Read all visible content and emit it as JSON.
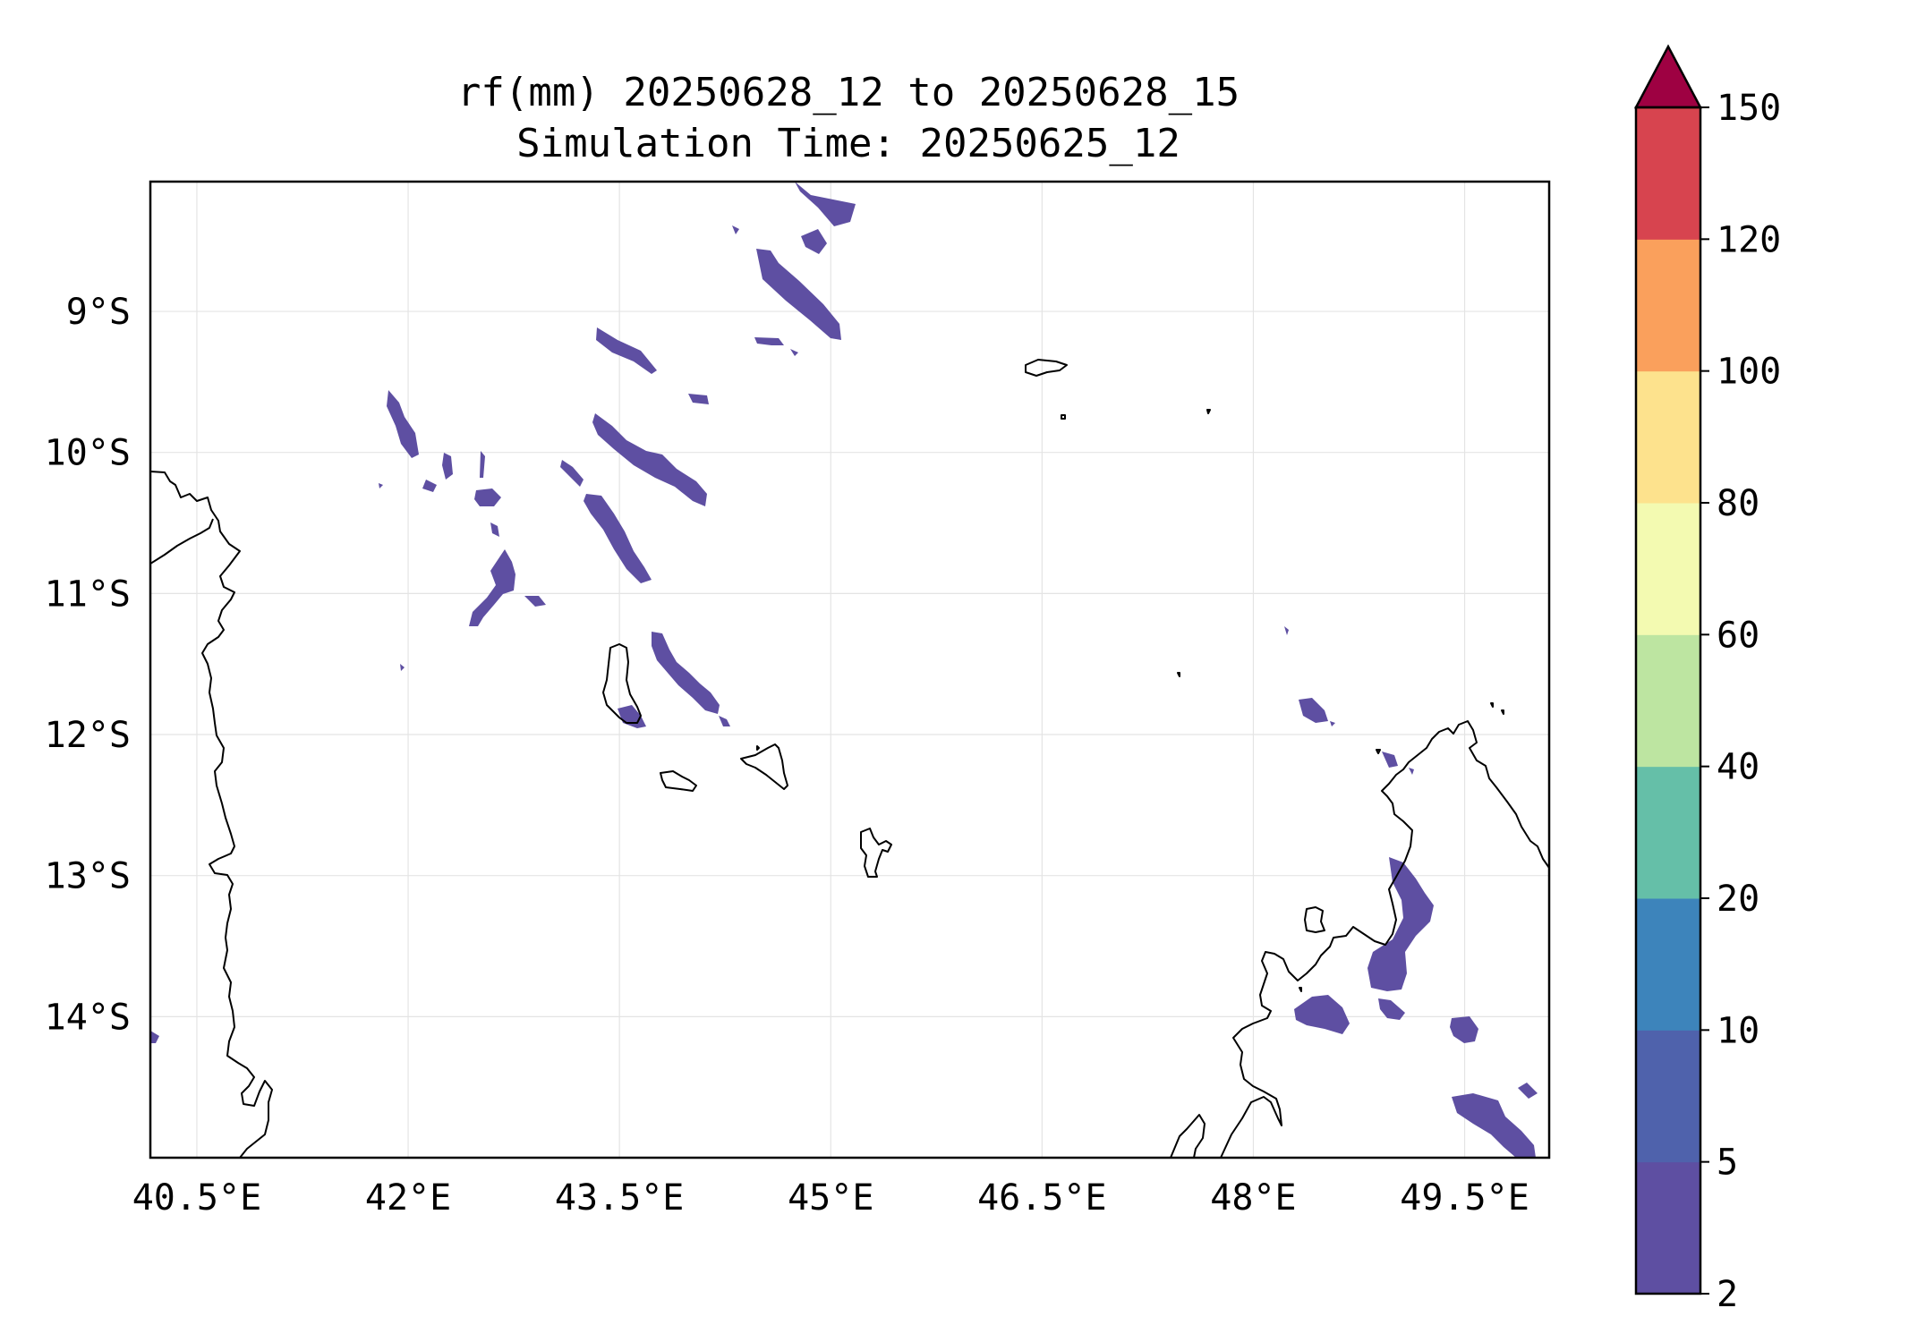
{
  "title": {
    "line1": "rf(mm) 20250628_12 to 20250628_15",
    "line2": "Simulation Time: 20250625_12"
  },
  "map": {
    "lon_range": [
      40.17,
      50.1
    ],
    "lat_range": [
      -15.0,
      -8.08
    ],
    "x_ticks": [
      {
        "value": 40.5,
        "label": "40.5°E"
      },
      {
        "value": 42.0,
        "label": "42°E"
      },
      {
        "value": 43.5,
        "label": "43.5°E"
      },
      {
        "value": 45.0,
        "label": "45°E"
      },
      {
        "value": 46.5,
        "label": "46.5°E"
      },
      {
        "value": 48.0,
        "label": "48°E"
      },
      {
        "value": 49.5,
        "label": "49.5°E"
      }
    ],
    "y_ticks": [
      {
        "value": -9,
        "label": "9°S"
      },
      {
        "value": -10,
        "label": "10°S"
      },
      {
        "value": -11,
        "label": "11°S"
      },
      {
        "value": -12,
        "label": "12°S"
      },
      {
        "value": -13,
        "label": "13°S"
      },
      {
        "value": -14,
        "label": "14°S"
      }
    ],
    "gridlines": true,
    "rain_fill_color": "#5e4fa2"
  },
  "colorbar": {
    "extend": "max",
    "levels": [
      {
        "label": "2",
        "color": "#5e4fa2"
      },
      {
        "label": "5",
        "color": "#4f62ac"
      },
      {
        "label": "10",
        "color": "#3d84bb"
      },
      {
        "label": "20",
        "color": "#65bfa8"
      },
      {
        "label": "40",
        "color": "#bde5a1"
      },
      {
        "label": "60",
        "color": "#f3fab1"
      },
      {
        "label": "80",
        "color": "#fde28d"
      },
      {
        "label": "100",
        "color": "#faa05c"
      },
      {
        "label": "120",
        "color": "#d7444f"
      },
      {
        "label": "150",
        "color": "#9e0142"
      }
    ]
  }
}
